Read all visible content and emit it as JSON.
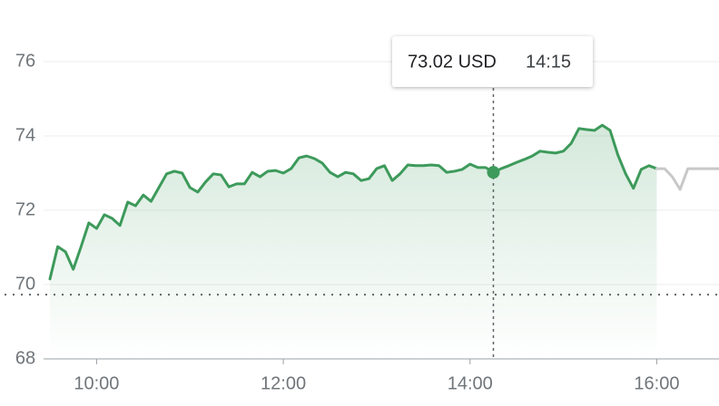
{
  "chart_data": {
    "type": "line",
    "xlim": [
      570,
      1000
    ],
    "xticks": [
      {
        "value": 600,
        "label": "10:00"
      },
      {
        "value": 720,
        "label": "12:00"
      },
      {
        "value": 840,
        "label": "14:00"
      },
      {
        "value": 960,
        "label": "16:00"
      }
    ],
    "ylim": [
      68,
      76
    ],
    "yticks": [
      68,
      70,
      72,
      74,
      76
    ],
    "grid": true,
    "previous_close": 69.73,
    "series": [
      {
        "color": "#3d9a5b",
        "x": [
          570,
          575,
          580,
          585,
          590,
          595,
          600,
          605,
          610,
          615,
          620,
          625,
          630,
          635,
          640,
          645,
          650,
          655,
          660,
          665,
          670,
          675,
          680,
          685,
          690,
          695,
          700,
          705,
          710,
          715,
          720,
          725,
          730,
          735,
          740,
          745,
          750,
          755,
          760,
          765,
          770,
          775,
          780,
          785,
          790,
          795,
          800,
          805,
          810,
          815,
          820,
          825,
          830,
          835,
          840,
          845,
          850,
          855,
          860,
          865,
          870,
          875,
          880,
          885,
          890,
          895,
          900,
          905,
          910,
          915,
          920,
          925,
          930,
          935,
          940,
          945,
          950,
          955,
          960
        ],
        "values": [
          70.15,
          71.02,
          70.88,
          70.41,
          71.02,
          71.66,
          71.51,
          71.88,
          71.78,
          71.59,
          72.22,
          72.12,
          72.41,
          72.24,
          72.61,
          72.98,
          73.05,
          73.0,
          72.61,
          72.49,
          72.76,
          72.98,
          72.95,
          72.63,
          72.71,
          72.71,
          73.02,
          72.9,
          73.05,
          73.07,
          73.0,
          73.12,
          73.41,
          73.46,
          73.39,
          73.27,
          73.02,
          72.9,
          73.02,
          72.98,
          72.8,
          72.85,
          73.12,
          73.2,
          72.8,
          72.98,
          73.22,
          73.2,
          73.2,
          73.22,
          73.2,
          73.02,
          73.05,
          73.1,
          73.24,
          73.15,
          73.15,
          73.02,
          73.12,
          73.2,
          73.29,
          73.37,
          73.46,
          73.59,
          73.56,
          73.54,
          73.59,
          73.8,
          74.2,
          74.17,
          74.15,
          74.29,
          74.15,
          73.49,
          72.98,
          72.59,
          73.1,
          73.2,
          73.12
        ]
      },
      {
        "color": "#c8c8c8",
        "x": [
          960,
          965,
          970,
          975,
          980,
          985,
          990,
          995,
          1000
        ],
        "values": [
          73.12,
          73.12,
          72.9,
          72.56,
          73.12,
          73.12,
          73.12,
          73.12,
          73.12
        ]
      }
    ],
    "tooltip": {
      "x": 855,
      "value": 73.02,
      "label": "73.02 USD",
      "time_label": "14:15"
    }
  }
}
